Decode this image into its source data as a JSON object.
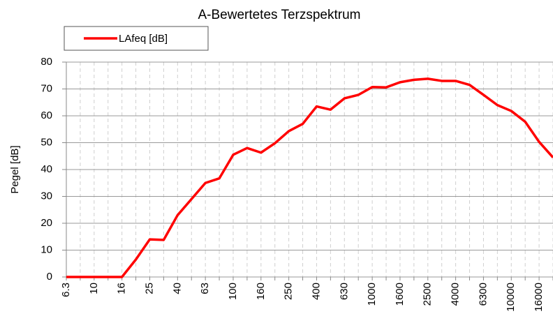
{
  "chart_data": {
    "type": "line",
    "title": "A-Bewertetes Terzspektrum",
    "y_label": "Pegel [dB]",
    "categories": [
      "6.3",
      null,
      "10",
      null,
      "16",
      null,
      "25",
      null,
      "40",
      null,
      "63",
      null,
      "100",
      null,
      "160",
      null,
      "250",
      null,
      "400",
      null,
      "630",
      null,
      "1000",
      null,
      "1600",
      null,
      "2500",
      null,
      "4000",
      null,
      "6300",
      null,
      "10000",
      null,
      "16000",
      null
    ],
    "series": [
      {
        "name": "LAfeq [dB]",
        "color": "#ff0000",
        "values": [
          0,
          0,
          0,
          0,
          0,
          6.5,
          14,
          13.8,
          23,
          29,
          35,
          36.7,
          45.5,
          48,
          46.3,
          49.8,
          54.3,
          57,
          63.5,
          62.3,
          66.5,
          67.8,
          70.7,
          70.6,
          72.5,
          73.4,
          73.8,
          73,
          73,
          71.5,
          67.8,
          64,
          61.8,
          57.8,
          50.3,
          44.5
        ]
      }
    ],
    "ylim": [
      0,
      80
    ],
    "yticks": [
      0,
      10,
      20,
      30,
      40,
      50,
      60,
      70,
      80
    ],
    "grid": true,
    "legend": "top-left"
  }
}
